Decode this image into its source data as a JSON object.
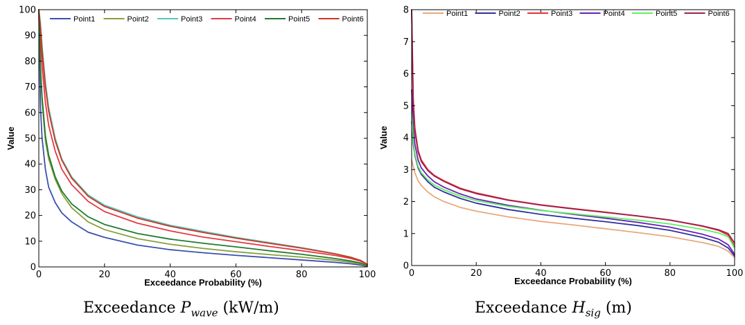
{
  "chart_data": [
    {
      "type": "line",
      "xlabel": "Exceedance Probability (%)",
      "ylabel": "Value",
      "xlim": [
        0,
        100
      ],
      "ylim": [
        0,
        100
      ],
      "xticks": [
        0,
        20,
        40,
        60,
        80,
        100
      ],
      "yticks": [
        0,
        10,
        20,
        30,
        40,
        50,
        60,
        70,
        80,
        90,
        100
      ],
      "grid": false,
      "legend": "top, single row",
      "caption": {
        "prefix": "Exceedance ",
        "symbol": "P",
        "sub": "wave",
        "suffix": " (kW/m)"
      },
      "x": [
        0,
        0.5,
        1,
        2,
        3,
        5,
        7,
        10,
        15,
        20,
        30,
        40,
        50,
        60,
        70,
        80,
        90,
        95,
        98,
        100
      ],
      "series": [
        {
          "name": "Point1",
          "color": "#3a4fb0",
          "values": [
            100,
            62,
            50,
            38,
            31,
            25,
            21,
            17.5,
            13.5,
            11.5,
            8.5,
            6.7,
            5.5,
            4.5,
            3.6,
            2.7,
            1.8,
            1.2,
            0.7,
            0.2
          ]
        },
        {
          "name": "Point2",
          "color": "#86a03a",
          "values": [
            100,
            76,
            64,
            49,
            42,
            34,
            28.5,
            23,
            17.5,
            14.5,
            11,
            8.8,
            7.2,
            5.9,
            4.8,
            3.8,
            2.6,
            1.8,
            1.1,
            0.3
          ]
        },
        {
          "name": "Point3",
          "color": "#4dc9bf",
          "values": [
            100,
            95,
            86,
            72,
            62,
            50,
            42,
            35,
            28,
            24,
            19.5,
            16.2,
            13.8,
            11.5,
            9.5,
            7.5,
            5.2,
            3.8,
            2.5,
            1
          ]
        },
        {
          "name": "Point4",
          "color": "#e03a44",
          "values": [
            100,
            88,
            78,
            64,
            55,
            45,
            38,
            32,
            25.5,
            21.5,
            17,
            14,
            11.6,
            9.8,
            8,
            6.3,
            4.5,
            3.3,
            2.2,
            0.8
          ]
        },
        {
          "name": "Point5",
          "color": "#1f7a2e",
          "values": [
            100,
            78,
            66,
            51,
            43.5,
            35,
            29.5,
            24.5,
            19.5,
            16.5,
            13,
            10.8,
            9.2,
            7.8,
            6.3,
            4.9,
            3.3,
            2.3,
            1.5,
            0.4
          ]
        },
        {
          "name": "Point6",
          "color": "#d2321f",
          "values": [
            100,
            93,
            84,
            70,
            60.5,
            49,
            41.5,
            34.5,
            27.5,
            23.5,
            19,
            15.8,
            13.4,
            11.2,
            9.2,
            7.3,
            5.1,
            3.7,
            2.5,
            1
          ]
        }
      ]
    },
    {
      "type": "line",
      "xlabel": "Exceedance Probability (%)",
      "ylabel": "Value",
      "xlim": [
        0,
        100
      ],
      "ylim": [
        0,
        8
      ],
      "xticks": [
        0,
        20,
        40,
        60,
        80,
        100
      ],
      "yticks": [
        0,
        1,
        2,
        3,
        4,
        5,
        6,
        7,
        8
      ],
      "grid": false,
      "legend": "top, single row",
      "caption": {
        "prefix": "Exceedance ",
        "symbol": "H",
        "sub": "sig",
        "suffix": " (m)"
      },
      "x": [
        0,
        0.5,
        1,
        2,
        3,
        5,
        7,
        10,
        15,
        20,
        30,
        40,
        50,
        60,
        70,
        80,
        90,
        95,
        98,
        100
      ],
      "series": [
        {
          "name": "Point1",
          "color": "#e8a878",
          "values": [
            3.3,
            3.1,
            2.9,
            2.65,
            2.5,
            2.3,
            2.15,
            2.0,
            1.82,
            1.7,
            1.52,
            1.38,
            1.27,
            1.15,
            1.03,
            0.9,
            0.72,
            0.6,
            0.45,
            0.25
          ]
        },
        {
          "name": "Point2",
          "color": "#2f2f9e",
          "values": [
            4.5,
            3.8,
            3.45,
            3.05,
            2.85,
            2.62,
            2.45,
            2.3,
            2.1,
            1.95,
            1.75,
            1.6,
            1.48,
            1.37,
            1.25,
            1.1,
            0.88,
            0.73,
            0.55,
            0.3
          ]
        },
        {
          "name": "Point3",
          "color": "#e8303a",
          "values": [
            8,
            5.2,
            4.3,
            3.6,
            3.3,
            3.0,
            2.82,
            2.65,
            2.42,
            2.27,
            2.05,
            1.9,
            1.78,
            1.67,
            1.55,
            1.42,
            1.23,
            1.1,
            0.95,
            0.6
          ]
        },
        {
          "name": "Point4",
          "color": "#6a1fb8",
          "values": [
            5.5,
            4.3,
            3.8,
            3.3,
            3.05,
            2.8,
            2.62,
            2.45,
            2.24,
            2.08,
            1.88,
            1.73,
            1.6,
            1.48,
            1.35,
            1.2,
            0.98,
            0.83,
            0.65,
            0.35
          ]
        },
        {
          "name": "Point5",
          "color": "#5ef05e",
          "values": [
            4.8,
            3.9,
            3.5,
            3.1,
            2.9,
            2.68,
            2.52,
            2.37,
            2.17,
            2.03,
            1.85,
            1.72,
            1.62,
            1.52,
            1.42,
            1.3,
            1.13,
            1.02,
            0.9,
            0.55
          ]
        },
        {
          "name": "Point6",
          "color": "#9e1f4a",
          "values": [
            8,
            5.0,
            4.2,
            3.55,
            3.25,
            2.97,
            2.8,
            2.63,
            2.4,
            2.25,
            2.04,
            1.89,
            1.77,
            1.66,
            1.55,
            1.42,
            1.24,
            1.12,
            1.0,
            0.7
          ]
        }
      ]
    }
  ]
}
